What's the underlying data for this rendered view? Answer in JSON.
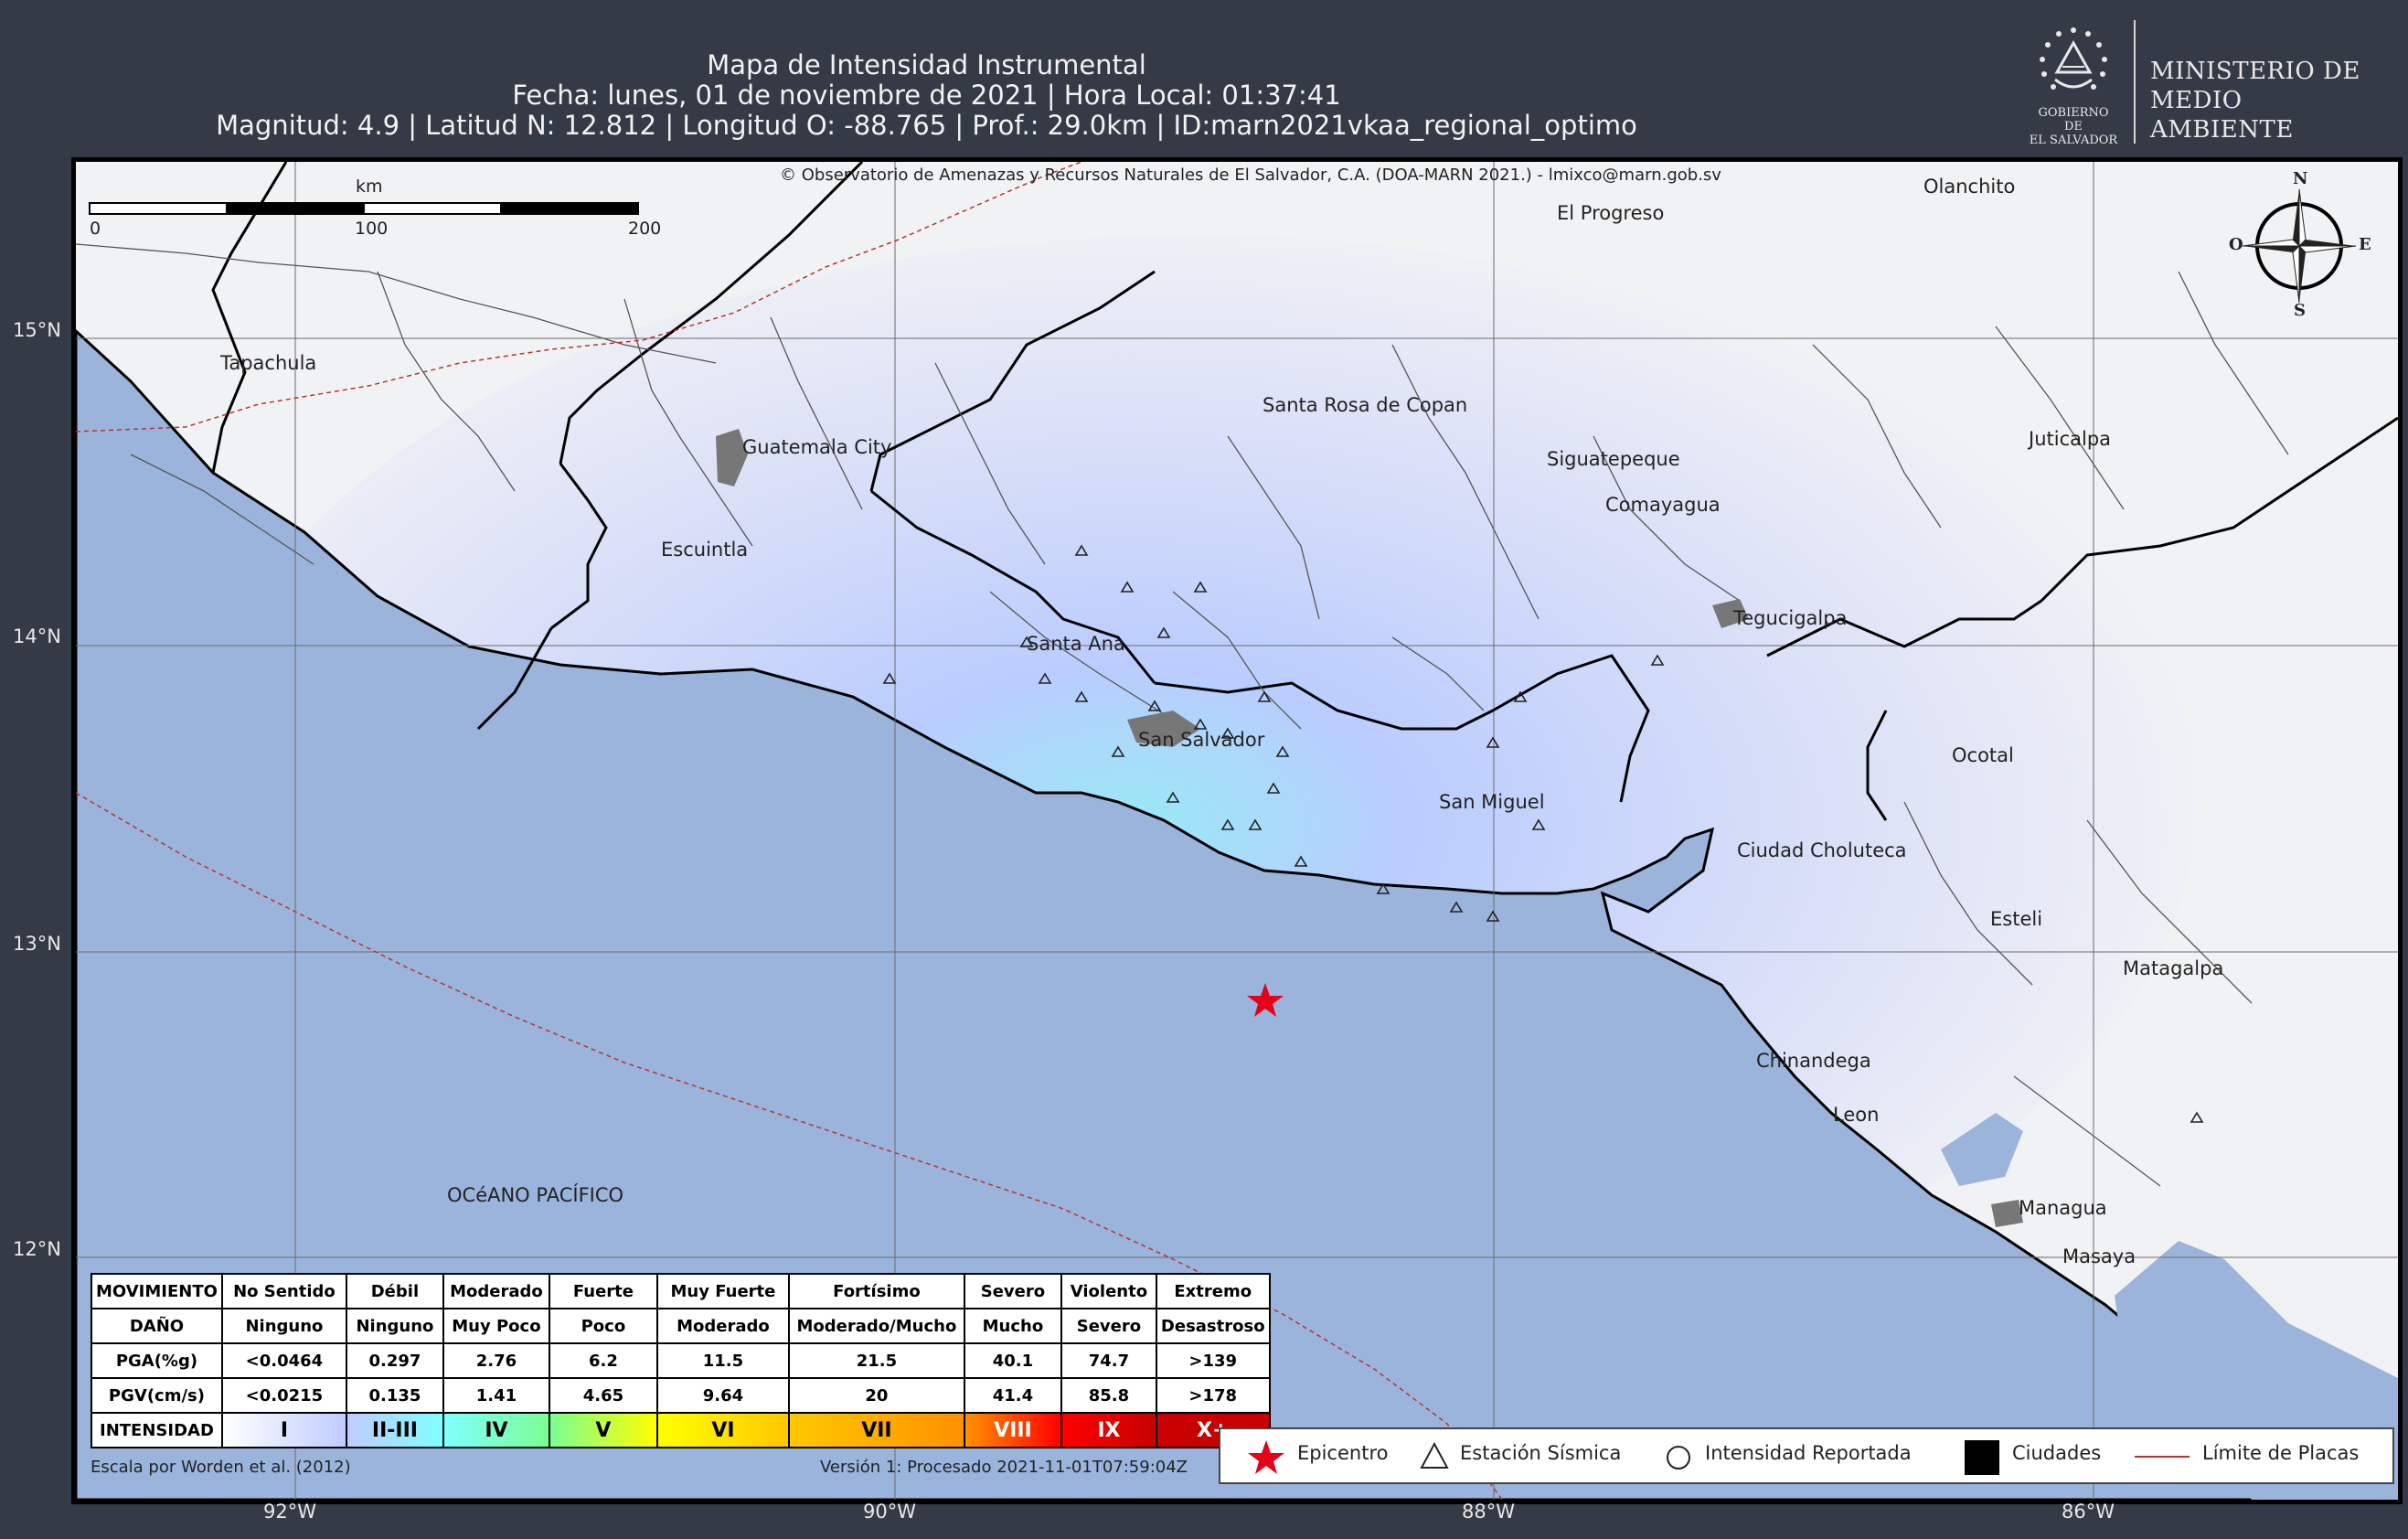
{
  "header": {
    "title": "Mapa de Intensidad Instrumental",
    "date_line": "Fecha: lunes, 01 de noviembre de 2021 | Hora Local: 01:37:41",
    "params_line": "Magnitud: 4.9 | Latitud N: 12.812 | Longitud O: -88.765 | Prof.: 29.0km | ID:marn2021vkaa_regional_optimo"
  },
  "logo": {
    "seal_caption_1": "GOBIERNO DE",
    "seal_caption_2": "EL SALVADOR",
    "ministry_1": "MINISTERIO DE",
    "ministry_2": "MEDIO AMBIENTE"
  },
  "map": {
    "copyright": "© Observatorio de Amenazas y Recursos Naturales de El Salvador, C.A. (DOA-MARN 2021.) - lmixco@marn.gob.sv",
    "scale": {
      "unit": "km",
      "ticks": [
        "0",
        "100",
        "200"
      ]
    },
    "compass": {
      "n": "N",
      "s": "S",
      "e": "E",
      "w": "O"
    },
    "cities": [
      "Tapachula",
      "Guatemala City",
      "Escuintla",
      "Santa Ana",
      "San Salvador",
      "San Miguel",
      "Santa Rosa de Copan",
      "El Progreso",
      "Olanchito",
      "Siguatepeque",
      "Comayagua",
      "Tegucigalpa",
      "Juticalpa",
      "Ocotal",
      "Ciudad Choluteca",
      "Esteli",
      "Matagalpa",
      "Chinandega",
      "Leon",
      "Managua",
      "Masaya"
    ],
    "ocean": "OCéANO PACÍFICO",
    "lat_ticks": [
      "15°N",
      "14°N",
      "13°N",
      "12°N"
    ],
    "lon_ticks": [
      "92°W",
      "90°W",
      "88°W",
      "86°W"
    ],
    "epicenter": {
      "lat": 12.812,
      "lon": -88.765
    }
  },
  "intensity_table": {
    "rows": [
      {
        "label": "MOVIMIENTO",
        "cells": [
          "No Sentido",
          "Débil",
          "Moderado",
          "Fuerte",
          "Muy Fuerte",
          "Fortísimo",
          "Severo",
          "Violento",
          "Extremo"
        ]
      },
      {
        "label": "DAÑO",
        "cells": [
          "Ninguno",
          "Ninguno",
          "Muy Poco",
          "Poco",
          "Moderado",
          "Moderado/Mucho",
          "Mucho",
          "Severo",
          "Desastroso"
        ]
      },
      {
        "label": "PGA(%g)",
        "cells": [
          "<0.0464",
          "0.297",
          "2.76",
          "6.2",
          "11.5",
          "21.5",
          "40.1",
          "74.7",
          ">139"
        ]
      },
      {
        "label": "PGV(cm/s)",
        "cells": [
          "<0.0215",
          "0.135",
          "1.41",
          "4.65",
          "9.64",
          "20",
          "41.4",
          "85.8",
          ">178"
        ]
      },
      {
        "label": "INTENSIDAD",
        "cells": [
          "I",
          "II-III",
          "IV",
          "V",
          "VI",
          "VII",
          "VIII",
          "IX",
          "X+"
        ]
      }
    ],
    "intensity_colors": [
      "#ffffff",
      "#bfccff",
      "#80ffff",
      "#7aff93",
      "#ffff00",
      "#ffc800",
      "#ff9100",
      "#ff0000",
      "#c80000"
    ]
  },
  "credits": {
    "left": "Escala por Worden et al. (2012)",
    "right": "Versión 1: Procesado 2021-11-01T07:59:04Z"
  },
  "legend": {
    "epicenter": "Epicentro",
    "station": "Estación Sísmica",
    "reported": "Intensidad Reportada",
    "cities": "Ciudades",
    "plates": "Límite de Placas"
  },
  "colors": {
    "background": "#343a46",
    "ocean": "#9bb4dc",
    "epicenter": "#e6001a",
    "plate_boundary": "#c03030"
  }
}
